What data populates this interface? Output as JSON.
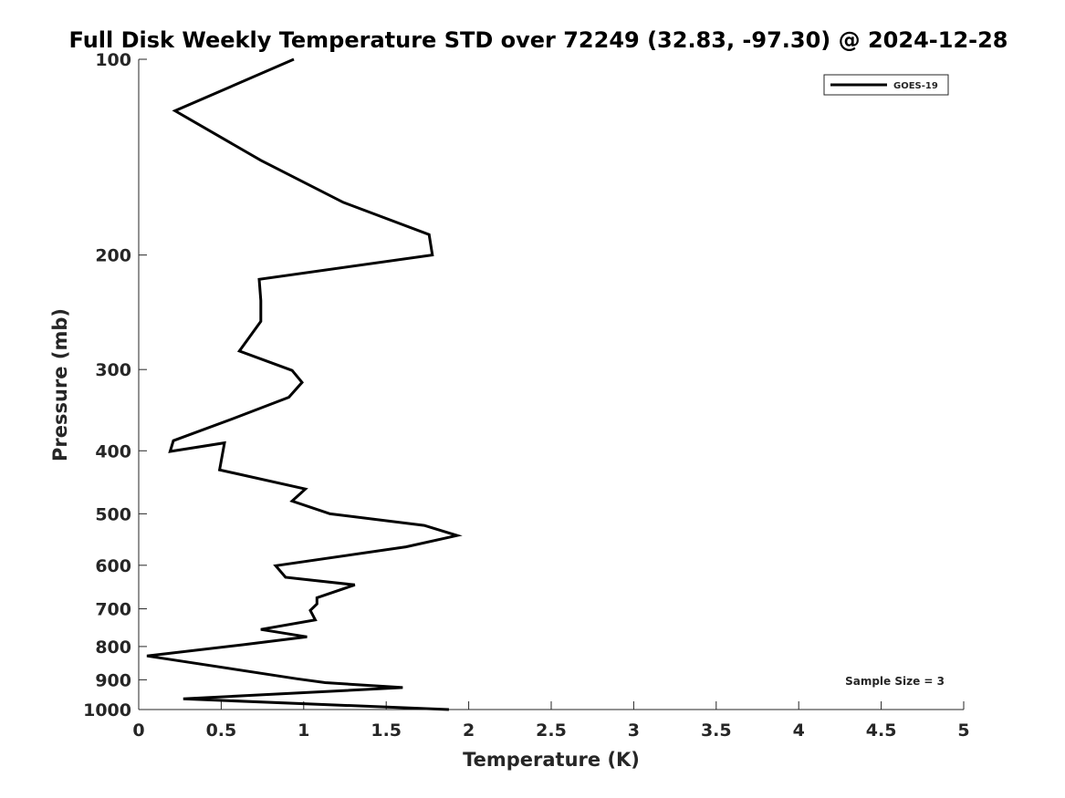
{
  "chart_data": {
    "type": "line",
    "title": "Full Disk Weekly Temperature STD over 72249 (32.83, -97.30) @ 2024-12-28",
    "xlabel": "Temperature (K)",
    "ylabel": "Pressure (mb)",
    "xlim": [
      0,
      5
    ],
    "ylim": [
      100,
      1000
    ],
    "yscale": "log",
    "y_reversed": true,
    "grid": false,
    "legend_position": "top-right",
    "x_ticks": [
      "0",
      "0.5",
      "1",
      "1.5",
      "2",
      "2.5",
      "3",
      "3.5",
      "4",
      "4.5",
      "5"
    ],
    "y_ticks": [
      "100",
      "200",
      "300",
      "400",
      "500",
      "600",
      "700",
      "800",
      "900",
      "1000"
    ],
    "annotation": "Sample Size = 3",
    "series": [
      {
        "name": "GOES-19",
        "color": "#000000",
        "points": [
          {
            "x": 0.94,
            "p": 100
          },
          {
            "x": 0.22,
            "p": 120
          },
          {
            "x": 0.74,
            "p": 143
          },
          {
            "x": 1.24,
            "p": 166
          },
          {
            "x": 1.76,
            "p": 186
          },
          {
            "x": 1.78,
            "p": 200
          },
          {
            "x": 0.73,
            "p": 218
          },
          {
            "x": 0.74,
            "p": 235
          },
          {
            "x": 0.74,
            "p": 253
          },
          {
            "x": 0.61,
            "p": 281
          },
          {
            "x": 0.93,
            "p": 301
          },
          {
            "x": 0.99,
            "p": 314
          },
          {
            "x": 0.91,
            "p": 331
          },
          {
            "x": 0.57,
            "p": 357
          },
          {
            "x": 0.21,
            "p": 386
          },
          {
            "x": 0.19,
            "p": 401
          },
          {
            "x": 0.52,
            "p": 389
          },
          {
            "x": 0.49,
            "p": 428
          },
          {
            "x": 1.01,
            "p": 458
          },
          {
            "x": 0.93,
            "p": 478
          },
          {
            "x": 1.16,
            "p": 500
          },
          {
            "x": 1.73,
            "p": 521
          },
          {
            "x": 1.93,
            "p": 540
          },
          {
            "x": 1.62,
            "p": 562
          },
          {
            "x": 0.83,
            "p": 601
          },
          {
            "x": 0.89,
            "p": 626
          },
          {
            "x": 1.31,
            "p": 643
          },
          {
            "x": 1.08,
            "p": 673
          },
          {
            "x": 1.08,
            "p": 688
          },
          {
            "x": 1.04,
            "p": 704
          },
          {
            "x": 1.07,
            "p": 728
          },
          {
            "x": 0.74,
            "p": 753
          },
          {
            "x": 1.02,
            "p": 773
          },
          {
            "x": 0.63,
            "p": 795
          },
          {
            "x": 0.05,
            "p": 827
          },
          {
            "x": 0.96,
            "p": 897
          },
          {
            "x": 1.13,
            "p": 909
          },
          {
            "x": 1.6,
            "p": 925
          },
          {
            "x": 0.27,
            "p": 963
          },
          {
            "x": 1.88,
            "p": 1000
          }
        ]
      }
    ]
  }
}
